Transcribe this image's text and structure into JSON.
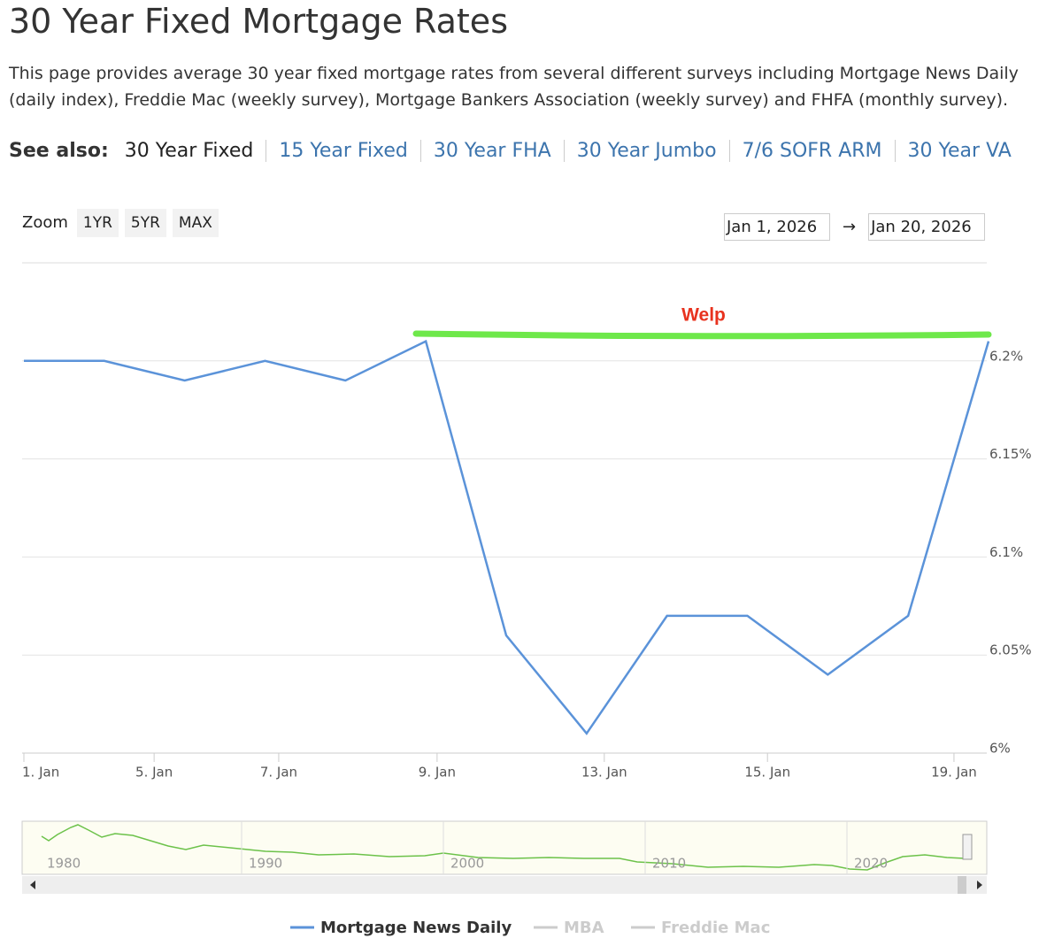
{
  "header": {
    "title": "30 Year Fixed Mortgage Rates",
    "description": "This page provides average 30 year fixed mortgage rates from several different surveys including Mortgage News Daily (daily index), Freddie Mac (weekly survey), Mortgage Bankers Association (weekly survey) and FHFA (monthly survey).",
    "see_also_label": "See also:",
    "links": [
      "30 Year Fixed",
      "15 Year Fixed",
      "30 Year FHA",
      "30 Year Jumbo",
      "7/6 SOFR ARM",
      "30 Year VA"
    ]
  },
  "controls": {
    "zoom_label": "Zoom",
    "zoom_buttons": [
      "1YR",
      "5YR",
      "MAX"
    ],
    "date_from": "Jan 1, 2026",
    "arrow": "→",
    "date_to": "Jan 20, 2026"
  },
  "chart_data": {
    "type": "line",
    "categories": [
      null,
      null,
      null,
      null,
      null,
      null,
      null,
      null,
      null,
      null,
      null,
      null,
      null
    ],
    "series": [
      {
        "name": "Mortgage News Daily",
        "color": "#5b93d9",
        "values": [
          6.2,
          6.2,
          6.19,
          6.2,
          6.19,
          6.21,
          6.06,
          6.01,
          6.07,
          6.07,
          6.04,
          6.07,
          6.21
        ]
      }
    ],
    "hidden_series": [
      {
        "name": "MBA",
        "color": "#cccccc"
      },
      {
        "name": "Freddie Mac",
        "color": "#cccccc"
      }
    ],
    "xticks": [
      {
        "value": 0,
        "label": "1. Jan"
      },
      {
        "value": 1.62,
        "label": "5. Jan"
      },
      {
        "value": 3.17,
        "label": "7. Jan"
      },
      {
        "value": 5.14,
        "label": "9. Jan"
      },
      {
        "value": 7.22,
        "label": "13. Jan"
      },
      {
        "value": 9.25,
        "label": "15. Jan"
      },
      {
        "value": 11.57,
        "label": "19. Jan"
      }
    ],
    "ylim": [
      6,
      6.25
    ],
    "yticks": [
      {
        "value": 6,
        "label": "6%"
      },
      {
        "value": 6.05,
        "label": "6.05%"
      },
      {
        "value": 6.1,
        "label": "6.1%"
      },
      {
        "value": 6.15,
        "label": "6.15%"
      },
      {
        "value": 6.2,
        "label": "6.2%"
      }
    ],
    "grid": true,
    "annotation": {
      "text": "Welp",
      "color": "#e8321e",
      "line_color": "#6ee84a"
    },
    "navigator_labels": [
      "1980",
      "1990",
      "2000",
      "2010",
      "2020"
    ]
  }
}
